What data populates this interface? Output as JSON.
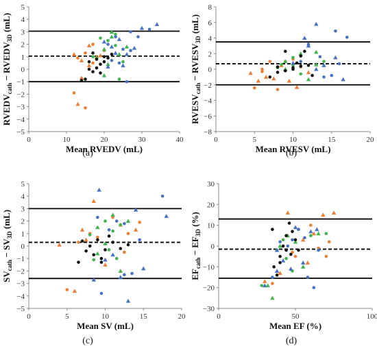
{
  "colors": {
    "orange": "#ED7D31",
    "blue": "#4472C4",
    "green": "#3DB549",
    "black": "#111111"
  },
  "chart_data": [
    {
      "type": "scatter",
      "panel": "(a)",
      "xlabel": "Mean RVEDV (mL)",
      "ylabel": {
        "main": "RVEDV",
        "sub1": "cath",
        "sep": " − RVEDV",
        "sub2": "3D",
        "unit": " (mL)"
      },
      "xlim": [
        0,
        40
      ],
      "ylim": [
        -5,
        5
      ],
      "xticks": [
        0,
        10,
        20,
        30,
        40
      ],
      "yticks": [
        -5,
        -4,
        -3,
        -2,
        -1,
        0,
        1,
        2,
        3,
        4,
        5
      ],
      "lines": {
        "upper": 3.05,
        "mean": 1.05,
        "lower": -1.0
      },
      "points": {
        "orange": [
          [
            12,
            1.2
          ],
          [
            13,
            0.9
          ],
          [
            14,
            0.7
          ],
          [
            12,
            -1.9
          ],
          [
            13,
            -2.8
          ],
          [
            15,
            -3.1
          ],
          [
            16,
            0.3
          ],
          [
            17,
            0.5
          ],
          [
            18,
            1.0
          ],
          [
            15,
            1.3
          ],
          [
            16,
            1.9
          ],
          [
            17,
            2.0
          ],
          [
            19,
            1.1
          ],
          [
            20,
            1.5
          ],
          [
            14,
            -0.7
          ]
        ],
        "green": [
          [
            19,
            2.5
          ],
          [
            20,
            1.6
          ],
          [
            21,
            2.3
          ],
          [
            22,
            2.6
          ],
          [
            23,
            1.9
          ],
          [
            24,
            1.2
          ],
          [
            25,
            0.6
          ],
          [
            20,
            -0.5
          ],
          [
            18,
            0.9
          ],
          [
            21,
            0.4
          ],
          [
            23,
            2.8
          ],
          [
            22,
            3.0
          ],
          [
            17,
            1.0
          ],
          [
            26,
            1.8
          ],
          [
            24,
            -0.8
          ]
        ],
        "black": [
          [
            15,
            -0.8
          ],
          [
            16,
            0.0
          ],
          [
            17,
            -0.2
          ],
          [
            18,
            0.1
          ],
          [
            19,
            0.4
          ],
          [
            20,
            0.6
          ],
          [
            21,
            0.9
          ],
          [
            22,
            1.2
          ],
          [
            17,
            1.3
          ],
          [
            16,
            0.6
          ],
          [
            18,
            0.8
          ],
          [
            14,
            -0.9
          ],
          [
            19,
            -0.3
          ],
          [
            20,
            1.0
          ]
        ],
        "blue": [
          [
            20,
            2.2
          ],
          [
            21,
            2.0
          ],
          [
            22,
            1.8
          ],
          [
            23,
            2.6
          ],
          [
            24,
            2.4
          ],
          [
            25,
            1.6
          ],
          [
            26,
            1.2
          ],
          [
            27,
            1.5
          ],
          [
            28,
            1.7
          ],
          [
            29,
            2.6
          ],
          [
            30,
            3.3
          ],
          [
            32,
            3.2
          ],
          [
            34,
            3.6
          ],
          [
            26,
            -1.0
          ],
          [
            25,
            0.3
          ],
          [
            24,
            0.5
          ],
          [
            23,
            1.3
          ],
          [
            22,
            0.7
          ],
          [
            21,
            0.2
          ],
          [
            27,
            3.0
          ]
        ]
      }
    },
    {
      "type": "scatter",
      "panel": "(b)",
      "xlabel": "Mean RVESV (mL)",
      "ylabel": {
        "main": "RVESV",
        "sub1": "cath",
        "sep": " − RVESV",
        "sub2": "3D",
        "unit": " (mL)"
      },
      "xlim": [
        0,
        20
      ],
      "ylim": [
        -8,
        8
      ],
      "xticks": [
        0,
        5,
        10,
        15,
        20
      ],
      "yticks": [
        -8,
        -6,
        -4,
        -2,
        0,
        2,
        4,
        6,
        8
      ],
      "lines": {
        "upper": 3.5,
        "mean": 0.7,
        "lower": -2.0
      },
      "points": {
        "orange": [
          [
            4.5,
            -0.5
          ],
          [
            5,
            -2.4
          ],
          [
            5.5,
            -1.5
          ],
          [
            6,
            -0.3
          ],
          [
            6.5,
            -1.0
          ],
          [
            7,
            1.0
          ],
          [
            7.5,
            -1.2
          ],
          [
            8,
            -2.6
          ],
          [
            8.5,
            0.5
          ],
          [
            9,
            1.0
          ],
          [
            9.5,
            -1.5
          ],
          [
            10,
            1.3
          ],
          [
            10.5,
            -2.3
          ],
          [
            11,
            0.3
          ],
          [
            12,
            -0.4
          ],
          [
            6,
            0.0
          ]
        ],
        "green": [
          [
            8,
            0.2
          ],
          [
            9,
            1.0
          ],
          [
            10,
            1.5
          ],
          [
            11,
            2.0
          ],
          [
            12,
            3.0
          ],
          [
            13,
            0.6
          ],
          [
            14,
            1.0
          ],
          [
            12,
            -1.3
          ],
          [
            11,
            -0.6
          ],
          [
            9,
            0.0
          ],
          [
            10,
            0.5
          ],
          [
            13,
            2.2
          ],
          [
            8.5,
            0.6
          ]
        ],
        "black": [
          [
            7,
            -1.0
          ],
          [
            8,
            -0.4
          ],
          [
            9,
            -0.2
          ],
          [
            10,
            0.2
          ],
          [
            10.5,
            0.8
          ],
          [
            11,
            1.7
          ],
          [
            11.5,
            2.3
          ],
          [
            12,
            0.5
          ],
          [
            9,
            2.3
          ],
          [
            10,
            0.0
          ],
          [
            8,
            0.3
          ],
          [
            11,
            0.4
          ],
          [
            12.5,
            -0.8
          ]
        ],
        "blue": [
          [
            10,
            0.8
          ],
          [
            11,
            1.0
          ],
          [
            11.5,
            4.0
          ],
          [
            12,
            3.2
          ],
          [
            13,
            5.8
          ],
          [
            13.5,
            1.6
          ],
          [
            14,
            0.5
          ],
          [
            15,
            -0.8
          ],
          [
            15.5,
            1.5
          ],
          [
            16,
            0.7
          ],
          [
            16.5,
            -1.3
          ],
          [
            17,
            4.1
          ],
          [
            12,
            3.0
          ],
          [
            14,
            -1.0
          ],
          [
            13,
            0.0
          ],
          [
            15.5,
            4.9
          ]
        ]
      }
    },
    {
      "type": "scatter",
      "panel": "(c)",
      "xlabel": "Mean SV (mL)",
      "ylabel": {
        "main": "SV",
        "sub1": "cath",
        "sep": " − SV",
        "sub2": "3D",
        "unit": " (mL)"
      },
      "xlim": [
        0,
        20
      ],
      "ylim": [
        -5,
        5
      ],
      "xticks": [
        0,
        5,
        10,
        15,
        20
      ],
      "yticks": [
        -5,
        -4,
        -3,
        -2,
        -1,
        0,
        1,
        2,
        3,
        4,
        5
      ],
      "lines": {
        "upper": 3.0,
        "mean": 0.3,
        "lower": -2.6
      },
      "points": {
        "orange": [
          [
            4,
            0.1
          ],
          [
            5,
            -3.5
          ],
          [
            6,
            -3.6
          ],
          [
            6.5,
            0.3
          ],
          [
            7,
            1.3
          ],
          [
            8,
            1.0
          ],
          [
            8.5,
            3.6
          ],
          [
            9,
            0.7
          ],
          [
            10,
            -1.5
          ],
          [
            11,
            2.3
          ],
          [
            12,
            1.7
          ],
          [
            13,
            1.0
          ],
          [
            14,
            1.3
          ],
          [
            14.5,
            1.9
          ],
          [
            7.5,
            0.5
          ],
          [
            12.5,
            -0.5
          ]
        ],
        "green": [
          [
            8,
            0.9
          ],
          [
            9,
            1.5
          ],
          [
            10,
            2.0
          ],
          [
            11,
            2.5
          ],
          [
            12,
            1.7
          ],
          [
            13,
            2.0
          ],
          [
            10.5,
            -0.3
          ],
          [
            9,
            -0.6
          ],
          [
            11.5,
            -1.0
          ],
          [
            12,
            -2.0
          ],
          [
            8.5,
            -1.1
          ],
          [
            10,
            0.2
          ],
          [
            11,
            1.2
          ]
        ],
        "black": [
          [
            6.5,
            -1.3
          ],
          [
            7,
            0.4
          ],
          [
            7.5,
            -0.4
          ],
          [
            8,
            0.0
          ],
          [
            8.5,
            -0.7
          ],
          [
            9,
            0.5
          ],
          [
            9.5,
            -1.3
          ],
          [
            10,
            -0.3
          ],
          [
            10.5,
            0.8
          ],
          [
            11,
            0.3
          ],
          [
            12,
            -0.2
          ],
          [
            13,
            0.1
          ],
          [
            9.5,
            -1.0
          ]
        ],
        "blue": [
          [
            8.5,
            -2.7
          ],
          [
            9,
            2.3
          ],
          [
            9.2,
            4.5
          ],
          [
            9.5,
            -3.8
          ],
          [
            10,
            -1.1
          ],
          [
            10.5,
            1.3
          ],
          [
            11,
            -0.7
          ],
          [
            11.5,
            2.0
          ],
          [
            12,
            -2.5
          ],
          [
            12.5,
            1.8
          ],
          [
            13,
            -4.4
          ],
          [
            13.5,
            -2.2
          ],
          [
            14,
            2.9
          ],
          [
            14.5,
            0.5
          ],
          [
            15,
            -1.8
          ],
          [
            17.5,
            4.0
          ],
          [
            18,
            2.4
          ],
          [
            12.5,
            -2.3
          ]
        ]
      }
    },
    {
      "type": "scatter",
      "panel": "(d)",
      "xlabel": "Mean EF (%)",
      "ylabel": {
        "main": "EF",
        "sub1": "cath",
        "sep": " − EF",
        "sub2": "3D",
        "unit": " (%)"
      },
      "xlim": [
        0,
        100
      ],
      "ylim": [
        -30,
        30
      ],
      "xticks": [
        0,
        50,
        100
      ],
      "yticks": [
        -30,
        -20,
        -10,
        0,
        10,
        20,
        30
      ],
      "lines": {
        "upper": 13.0,
        "mean": -1.5,
        "lower": -15.5
      },
      "points": {
        "orange": [
          [
            30,
            -17
          ],
          [
            35,
            -18
          ],
          [
            45,
            16
          ],
          [
            50,
            -5
          ],
          [
            55,
            3
          ],
          [
            60,
            10
          ],
          [
            62,
            6
          ],
          [
            65,
            -1
          ],
          [
            68,
            15
          ],
          [
            70,
            -5
          ],
          [
            75,
            16
          ],
          [
            72,
            2
          ],
          [
            58,
            -8
          ],
          [
            48,
            -3
          ],
          [
            40,
            -13
          ]
        ],
        "green": [
          [
            28,
            -19
          ],
          [
            35,
            -25
          ],
          [
            38,
            -2
          ],
          [
            40,
            0
          ],
          [
            42,
            3
          ],
          [
            45,
            5
          ],
          [
            48,
            -12
          ],
          [
            50,
            2
          ],
          [
            52,
            8
          ],
          [
            55,
            -10
          ],
          [
            60,
            5
          ],
          [
            65,
            6
          ],
          [
            70,
            6
          ],
          [
            32,
            -19
          ],
          [
            44,
            -6
          ]
        ],
        "black": [
          [
            35,
            8
          ],
          [
            38,
            -14
          ],
          [
            40,
            -5
          ],
          [
            42,
            0
          ],
          [
            44,
            5
          ],
          [
            46,
            11
          ],
          [
            48,
            7
          ],
          [
            50,
            3
          ],
          [
            52,
            -2
          ],
          [
            44,
            -2
          ],
          [
            40,
            -8
          ],
          [
            36,
            -10
          ],
          [
            47,
            -4
          ]
        ],
        "blue": [
          [
            30,
            -19
          ],
          [
            35,
            -15
          ],
          [
            38,
            -2
          ],
          [
            40,
            2
          ],
          [
            42,
            -7
          ],
          [
            45,
            0
          ],
          [
            47,
            -11
          ],
          [
            48,
            3
          ],
          [
            50,
            9
          ],
          [
            52,
            8
          ],
          [
            55,
            -8
          ],
          [
            58,
            -15
          ],
          [
            60,
            7
          ],
          [
            62,
            -20
          ],
          [
            64,
            8
          ],
          [
            65,
            -2
          ],
          [
            38,
            -12
          ],
          [
            56,
            4
          ]
        ]
      }
    }
  ]
}
